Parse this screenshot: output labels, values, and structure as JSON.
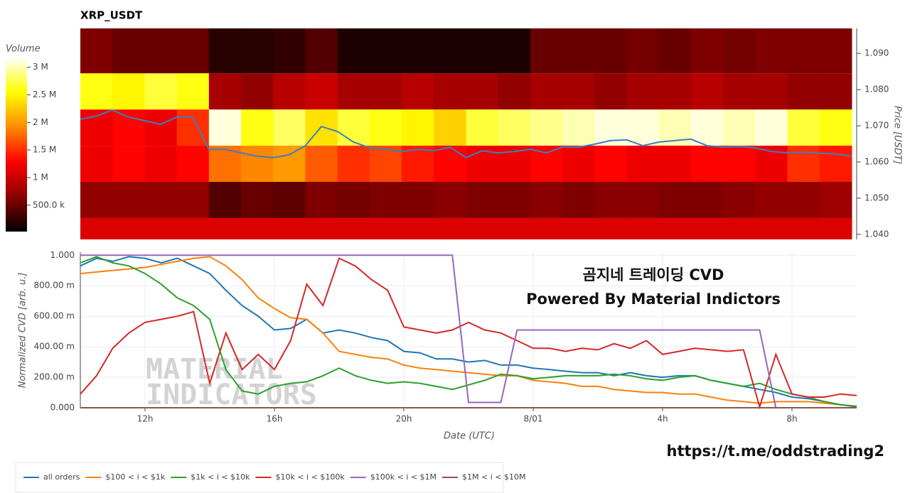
{
  "chart_data": [
    {
      "type": "heatmap",
      "title": "XRP_USDT",
      "x_bins": [
        10,
        11,
        12,
        13,
        14,
        15,
        16,
        17,
        18,
        19,
        20,
        21,
        22,
        23,
        24,
        25,
        26,
        27,
        28,
        29,
        30,
        31,
        32,
        33,
        34
      ],
      "y_bins": [
        1.0386,
        1.0445,
        1.0545,
        1.0645,
        1.0745,
        1.0845,
        1.0969
      ],
      "z": [
        [
          1100000,
          1100000,
          1100000,
          1100000,
          1100000,
          1100000,
          1100000,
          1100000,
          1100000,
          1100000,
          1100000,
          1100000,
          1100000,
          1100000,
          1100000,
          1100000,
          1100000,
          1100000,
          1100000,
          1100000,
          1100000,
          1100000,
          1100000,
          1100000
        ],
        [
          700000,
          700000,
          700000,
          700000,
          400000,
          500000,
          450000,
          600000,
          550000,
          600000,
          600000,
          650000,
          600000,
          600000,
          650000,
          600000,
          650000,
          650000,
          600000,
          600000,
          650000,
          700000,
          700000,
          750000
        ],
        [
          1200000,
          1300000,
          1200000,
          1300000,
          1800000,
          1900000,
          2000000,
          1700000,
          1500000,
          1600000,
          1400000,
          1300000,
          1200000,
          1200000,
          1300000,
          1200000,
          1300000,
          1200000,
          1200000,
          1300000,
          1300000,
          1200000,
          1500000,
          1400000
        ],
        [
          1200000,
          1300000,
          1200000,
          1500000,
          3100000,
          2600000,
          2800000,
          2400000,
          2700000,
          2600000,
          2500000,
          2300000,
          2700000,
          2800000,
          2900000,
          3000000,
          3100000,
          3100000,
          3000000,
          3100000,
          3000000,
          3100000,
          2700000,
          2600000
        ],
        [
          2600000,
          2500000,
          2700000,
          2600000,
          800000,
          700000,
          900000,
          1000000,
          800000,
          800000,
          900000,
          800000,
          800000,
          700000,
          800000,
          800000,
          700000,
          800000,
          800000,
          900000,
          800000,
          800000,
          700000,
          700000
        ],
        [
          600000,
          500000,
          500000,
          500000,
          200000,
          200000,
          250000,
          400000,
          150000,
          150000,
          150000,
          150000,
          150000,
          150000,
          500000,
          500000,
          500000,
          550000,
          500000,
          600000,
          550000,
          600000,
          600000,
          600000
        ]
      ],
      "zlim": [
        20000,
        3190000
      ],
      "colorscale": [
        "#000000",
        "#8b0000",
        "#ff0000",
        "#ff8c00",
        "#ffff00",
        "#ffffff"
      ],
      "colorbar_title": "Volume",
      "colorbar_ticks": [
        {
          "value": 500000,
          "label": "500.0 k"
        },
        {
          "value": 1000000,
          "label": "1 M"
        },
        {
          "value": 1500000,
          "label": "1.5 M"
        },
        {
          "value": 2000000,
          "label": "2 M"
        },
        {
          "value": 2500000,
          "label": "2.5 M"
        },
        {
          "value": 3000000,
          "label": "3 M"
        }
      ],
      "xlim": [
        10,
        34
      ],
      "ylim": [
        1.0386,
        1.0969
      ],
      "yticks": [
        {
          "value": 1.04,
          "label": "1.040"
        },
        {
          "value": 1.05,
          "label": "1.050"
        },
        {
          "value": 1.06,
          "label": "1.060"
        },
        {
          "value": 1.07,
          "label": "1.070"
        },
        {
          "value": 1.08,
          "label": "1.080"
        },
        {
          "value": 1.09,
          "label": "1.090"
        }
      ],
      "ylabel": "Price [USDT]",
      "overlay": {
        "color": "#3a7fc0",
        "x": [
          10,
          10.5,
          11,
          11.5,
          12,
          12.5,
          13,
          13.5,
          14,
          14.5,
          15,
          15.5,
          16,
          16.5,
          17,
          17.5,
          18,
          18.5,
          19,
          19.5,
          20,
          20.5,
          21,
          21.5,
          22,
          22.5,
          23,
          23.5,
          24,
          24.5,
          25,
          25.5,
          26,
          26.5,
          27,
          27.5,
          28,
          28.5,
          29,
          29.5,
          30,
          30.5,
          31,
          31.5,
          32,
          32.5,
          33,
          33.5,
          34
        ],
        "values": [
          1.0718,
          1.0727,
          1.0743,
          1.0724,
          1.0714,
          1.0704,
          1.0724,
          1.0724,
          1.0635,
          1.0635,
          1.0625,
          1.0616,
          1.0612,
          1.062,
          1.0645,
          1.0698,
          1.0684,
          1.0655,
          1.0639,
          1.0635,
          1.0629,
          1.0635,
          1.0631,
          1.0641,
          1.0612,
          1.0631,
          1.0625,
          1.0629,
          1.0635,
          1.0625,
          1.0641,
          1.0641,
          1.0649,
          1.0659,
          1.0661,
          1.0645,
          1.0655,
          1.0659,
          1.0663,
          1.0645,
          1.0641,
          1.0643,
          1.0639,
          1.0629,
          1.0625,
          1.0627,
          1.0624,
          1.0622,
          1.0616
        ]
      }
    },
    {
      "type": "line",
      "x": [
        10,
        10.5,
        11,
        11.5,
        12,
        12.5,
        13,
        13.5,
        14,
        14.5,
        15,
        15.5,
        16,
        16.5,
        17,
        17.5,
        18,
        18.5,
        19,
        19.5,
        20,
        20.5,
        21,
        21.5,
        22,
        22.5,
        23,
        23.5,
        24,
        24.5,
        25,
        25.5,
        26,
        26.5,
        27,
        27.5,
        28,
        28.5,
        29,
        29.5,
        30,
        30.5,
        31,
        31.5,
        32,
        32.5,
        33,
        33.5,
        34
      ],
      "xlim": [
        10,
        34
      ],
      "xticks": [
        {
          "value": 12,
          "label": "12h"
        },
        {
          "value": 16,
          "label": "16h"
        },
        {
          "value": 20,
          "label": "20h"
        },
        {
          "value": 24,
          "label": "8/01"
        },
        {
          "value": 28,
          "label": "4h"
        },
        {
          "value": 32,
          "label": "8h"
        }
      ],
      "ylim": [
        0,
        1.02
      ],
      "yticks": [
        {
          "value": 0,
          "label": "0.000"
        },
        {
          "value": 0.2,
          "label": "200.00 m"
        },
        {
          "value": 0.4,
          "label": "400.00 m"
        },
        {
          "value": 0.6,
          "label": "600.00 m"
        },
        {
          "value": 0.8,
          "label": "800.00 m"
        },
        {
          "value": 1,
          "label": "1.000"
        }
      ],
      "xlabel": "Date (UTC)",
      "ylabel": "Normalized CVD [arb. u.]",
      "grid": true,
      "legend": "bottom",
      "series": [
        {
          "name": "all orders",
          "color": "#1f77b4",
          "values": [
            0.93,
            0.98,
            0.96,
            0.99,
            0.98,
            0.95,
            0.98,
            0.93,
            0.88,
            0.77,
            0.67,
            0.6,
            0.51,
            0.52,
            0.58,
            0.49,
            0.51,
            0.49,
            0.46,
            0.44,
            0.37,
            0.36,
            0.32,
            0.32,
            0.3,
            0.31,
            0.28,
            0.28,
            0.26,
            0.25,
            0.24,
            0.23,
            0.23,
            0.21,
            0.23,
            0.21,
            0.2,
            0.21,
            0.21,
            0.18,
            0.16,
            0.14,
            0.12,
            0.1,
            0.07,
            0.06,
            0.04,
            0.02,
            0.005
          ]
        },
        {
          "name": "$100 < i < $1k",
          "color": "#ff7f0e",
          "values": [
            0.88,
            0.89,
            0.9,
            0.91,
            0.92,
            0.94,
            0.96,
            0.98,
            0.99,
            0.93,
            0.84,
            0.72,
            0.65,
            0.59,
            0.58,
            0.49,
            0.37,
            0.35,
            0.33,
            0.32,
            0.28,
            0.26,
            0.25,
            0.24,
            0.23,
            0.22,
            0.21,
            0.21,
            0.18,
            0.17,
            0.16,
            0.14,
            0.14,
            0.12,
            0.11,
            0.1,
            0.1,
            0.09,
            0.09,
            0.07,
            0.05,
            0.04,
            0.03,
            0.04,
            0.04,
            0.04,
            0.03,
            0.02,
            0.01
          ]
        },
        {
          "name": "$1k < i < $10k",
          "color": "#2ca02c",
          "values": [
            0.95,
            0.99,
            0.95,
            0.93,
            0.88,
            0.81,
            0.72,
            0.67,
            0.58,
            0.25,
            0.11,
            0.09,
            0.14,
            0.16,
            0.17,
            0.21,
            0.26,
            0.21,
            0.18,
            0.16,
            0.17,
            0.16,
            0.14,
            0.12,
            0.15,
            0.18,
            0.22,
            0.21,
            0.19,
            0.2,
            0.21,
            0.21,
            0.21,
            0.22,
            0.21,
            0.19,
            0.18,
            0.2,
            0.21,
            0.18,
            0.16,
            0.14,
            0.16,
            0.12,
            0.09,
            0.07,
            0.04,
            0.02,
            0.01
          ]
        },
        {
          "name": "$10k < i < $100k",
          "color": "#d62728",
          "values": [
            0.09,
            0.21,
            0.39,
            0.49,
            0.56,
            0.58,
            0.6,
            0.63,
            0.16,
            0.49,
            0.25,
            0.35,
            0.25,
            0.44,
            0.81,
            0.67,
            0.98,
            0.93,
            0.84,
            0.77,
            0.53,
            0.51,
            0.49,
            0.51,
            0.56,
            0.51,
            0.49,
            0.44,
            0.39,
            0.39,
            0.37,
            0.39,
            0.38,
            0.42,
            0.39,
            0.44,
            0.35,
            0.37,
            0.39,
            0.38,
            0.37,
            0.38,
            0.005,
            0.35,
            0.09,
            0.07,
            0.07,
            0.09,
            0.08
          ]
        },
        {
          "name": "$100k < i < $1M",
          "color": "#9467bd",
          "values": [
            1,
            1,
            1,
            1,
            1,
            1,
            1,
            1,
            1,
            1,
            1,
            1,
            1,
            1,
            1,
            1,
            1,
            1,
            1,
            1,
            1,
            1,
            1,
            1,
            0.035,
            0.035,
            0.035,
            0.51,
            0.51,
            0.51,
            0.51,
            0.51,
            0.51,
            0.51,
            0.51,
            0.51,
            0.51,
            0.51,
            0.51,
            0.51,
            0.51,
            0.51,
            0.51,
            0,
            0,
            0,
            0,
            0,
            0
          ]
        },
        {
          "name": "$1M < i < $10M",
          "color": "#8c564b",
          "values": [
            0,
            0,
            0,
            0,
            0,
            0,
            0,
            0,
            0,
            0,
            0,
            0,
            0,
            0,
            0,
            0,
            0,
            0,
            0,
            0,
            0,
            0,
            0,
            0,
            0,
            0,
            0,
            0,
            0,
            0,
            0,
            0,
            0,
            0,
            0,
            0,
            0,
            0,
            0,
            0,
            0,
            0,
            0,
            0,
            0,
            0,
            0,
            0,
            0
          ]
        }
      ],
      "annotations": [
        "곰지네 트레이딩 CVD",
        "Powered By Material Indictors"
      ],
      "watermark": [
        "MATERIAL",
        "INDICATORS"
      ],
      "link": "https://t.me/oddstrading2"
    }
  ]
}
